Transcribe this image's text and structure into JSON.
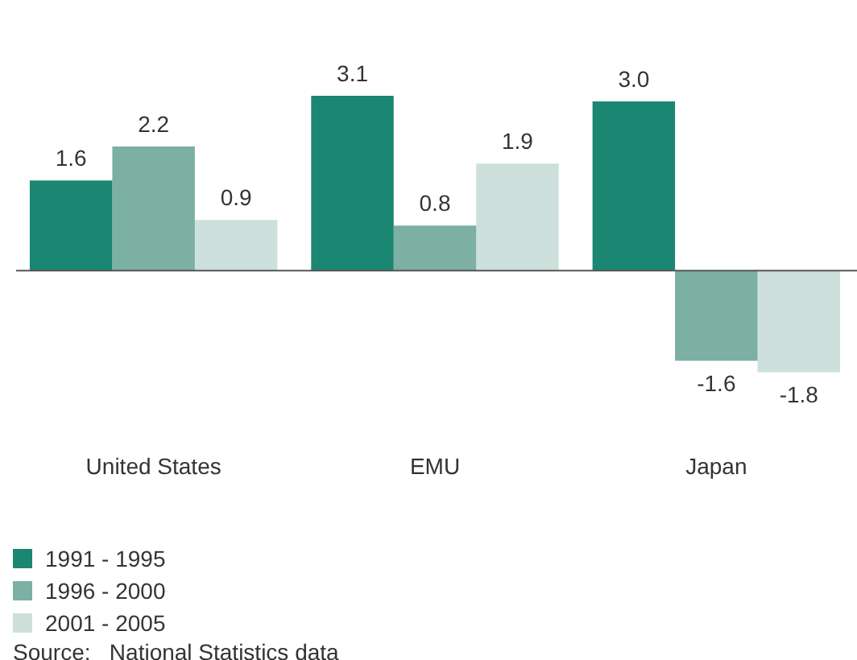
{
  "chart_data": {
    "type": "bar",
    "categories": [
      "United States",
      "EMU",
      "Japan"
    ],
    "series": [
      {
        "name": "1991 - 1995",
        "color": "#1b8672",
        "values": [
          1.6,
          3.1,
          3.0
        ],
        "value_labels": [
          "1.6",
          "3.1",
          "3.0"
        ]
      },
      {
        "name": "1996 - 2000",
        "color": "#7bb0a2",
        "values": [
          2.2,
          0.8,
          -1.6
        ],
        "value_labels": [
          "2.2",
          "0.8",
          "-1.6"
        ]
      },
      {
        "name": "2001 - 2005",
        "color": "#cde0db",
        "values": [
          0.9,
          1.9,
          -1.8
        ],
        "value_labels": [
          "0.9",
          "1.9",
          "-1.8"
        ]
      }
    ],
    "legend": "bottom left",
    "annotations": [
      "Source:   National Statistics data"
    ]
  }
}
